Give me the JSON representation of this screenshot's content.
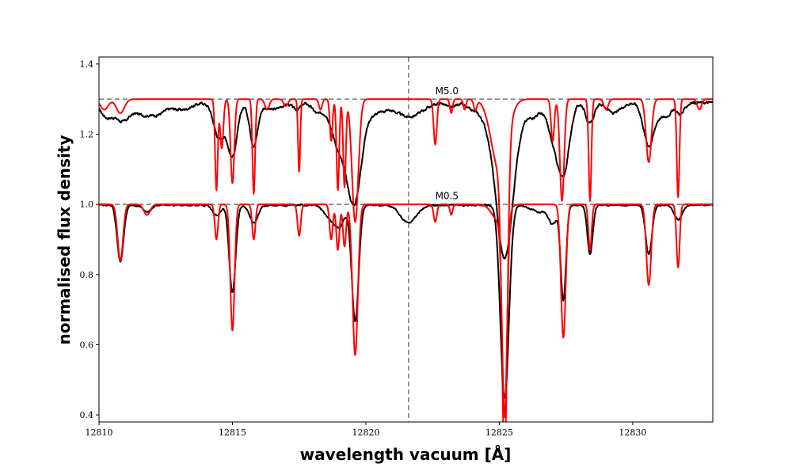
{
  "chart_data": {
    "type": "line",
    "xlabel": "wavelength vacuum [Å]",
    "ylabel": "normalised flux density",
    "xlim": [
      12810,
      12833
    ],
    "ylim": [
      0.38,
      1.42
    ],
    "xticks": [
      12810,
      12815,
      12820,
      12825,
      12830
    ],
    "yticks": [
      0.4,
      0.6,
      0.8,
      1.0,
      1.2,
      1.4
    ],
    "grid": false,
    "reference_lines": [
      {
        "orientation": "horizontal",
        "y": 1.3,
        "style": "dashed",
        "color": "#808080"
      },
      {
        "orientation": "horizontal",
        "y": 1.0,
        "style": "dashed",
        "color": "#808080"
      },
      {
        "orientation": "vertical",
        "x": 12821.6,
        "style": "dashed",
        "color": "#808080"
      }
    ],
    "annotations": [
      {
        "text": "M5.0",
        "x": 12822.6,
        "y": 1.31
      },
      {
        "text": "M0.5",
        "x": 12822.6,
        "y": 1.01
      }
    ],
    "series": [
      {
        "color": "#000000",
        "offset": 1.3,
        "continuum": 1.29,
        "noise": 0.009,
        "lines": [
          [
            12810.3,
            0.04,
            0.25
          ],
          [
            12810.9,
            0.05,
            0.25
          ],
          [
            12811.6,
            0.03,
            0.3
          ],
          [
            12812.2,
            0.03,
            0.3
          ],
          [
            12813.1,
            0.02,
            0.35
          ],
          [
            12814.5,
            0.1,
            0.2
          ],
          [
            12815.0,
            0.15,
            0.18
          ],
          [
            12815.8,
            0.12,
            0.15
          ],
          [
            12816.5,
            0.02,
            0.3
          ],
          [
            12817.4,
            0.02,
            0.15
          ],
          [
            12818.2,
            0.03,
            0.2
          ],
          [
            12818.9,
            0.08,
            0.25
          ],
          [
            12819.3,
            0.1,
            0.3
          ],
          [
            12819.6,
            0.22,
            0.25
          ],
          [
            12820.3,
            0.03,
            0.35
          ],
          [
            12821.6,
            0.04,
            0.5
          ],
          [
            12823.2,
            0.015,
            0.15
          ],
          [
            12823.9,
            0.015,
            0.2
          ],
          [
            12824.5,
            0.04,
            0.3
          ],
          [
            12825.2,
            0.44,
            0.32
          ],
          [
            12826.2,
            0.04,
            0.35
          ],
          [
            12827.0,
            0.08,
            0.2
          ],
          [
            12827.4,
            0.2,
            0.22
          ],
          [
            12828.4,
            0.06,
            0.15
          ],
          [
            12829.3,
            0.03,
            0.25
          ],
          [
            12830.6,
            0.12,
            0.2
          ],
          [
            12831.2,
            0.04,
            0.25
          ],
          [
            12831.8,
            0.03,
            0.15
          ]
        ]
      },
      {
        "color": "#ff0000",
        "offset": 1.3,
        "continuum": 1.3,
        "noise": 0.0,
        "lines": [
          [
            12810.2,
            0.03,
            0.15
          ],
          [
            12810.8,
            0.04,
            0.15
          ],
          [
            12814.4,
            0.26,
            0.05
          ],
          [
            12814.6,
            0.14,
            0.06
          ],
          [
            12815.0,
            0.24,
            0.07
          ],
          [
            12815.8,
            0.27,
            0.05
          ],
          [
            12816.3,
            0.03,
            0.08
          ],
          [
            12817.0,
            0.02,
            0.08
          ],
          [
            12817.5,
            0.21,
            0.04
          ],
          [
            12818.3,
            0.03,
            0.06
          ],
          [
            12818.7,
            0.12,
            0.05
          ],
          [
            12818.95,
            0.26,
            0.05
          ],
          [
            12819.2,
            0.25,
            0.05
          ],
          [
            12819.6,
            0.35,
            0.12
          ],
          [
            12822.6,
            0.13,
            0.06
          ],
          [
            12823.2,
            0.04,
            0.05
          ],
          [
            12823.7,
            0.03,
            0.05
          ],
          [
            12824.1,
            0.03,
            0.06
          ],
          [
            12825.2,
            0.87,
            0.1
          ],
          [
            12825.0,
            0.2,
            0.3
          ],
          [
            12827.0,
            0.12,
            0.06
          ],
          [
            12827.35,
            0.29,
            0.08
          ],
          [
            12828.4,
            0.29,
            0.05
          ],
          [
            12829.0,
            0.03,
            0.08
          ],
          [
            12830.6,
            0.18,
            0.1
          ],
          [
            12831.7,
            0.28,
            0.05
          ],
          [
            12832.5,
            0.03,
            0.08
          ]
        ]
      },
      {
        "color": "#000000",
        "offset": 1.0,
        "continuum": 0.998,
        "noise": 0.005,
        "lines": [
          [
            12810.8,
            0.16,
            0.12
          ],
          [
            12811.8,
            0.02,
            0.15
          ],
          [
            12814.4,
            0.03,
            0.15
          ],
          [
            12815.0,
            0.25,
            0.12
          ],
          [
            12815.8,
            0.05,
            0.15
          ],
          [
            12818.6,
            0.03,
            0.2
          ],
          [
            12819.0,
            0.06,
            0.2
          ],
          [
            12819.6,
            0.33,
            0.13
          ],
          [
            12821.6,
            0.05,
            0.3
          ],
          [
            12825.2,
            0.55,
            0.16
          ],
          [
            12826.5,
            0.02,
            0.3
          ],
          [
            12827.0,
            0.05,
            0.15
          ],
          [
            12827.4,
            0.27,
            0.1
          ],
          [
            12828.4,
            0.14,
            0.1
          ],
          [
            12830.6,
            0.14,
            0.12
          ],
          [
            12831.7,
            0.04,
            0.15
          ]
        ]
      },
      {
        "color": "#ff0000",
        "offset": 1.0,
        "continuum": 1.0,
        "noise": 0.0,
        "lines": [
          [
            12810.8,
            0.16,
            0.1
          ],
          [
            12811.8,
            0.03,
            0.12
          ],
          [
            12814.4,
            0.1,
            0.06
          ],
          [
            12815.0,
            0.36,
            0.08
          ],
          [
            12815.8,
            0.1,
            0.06
          ],
          [
            12817.5,
            0.09,
            0.06
          ],
          [
            12818.7,
            0.1,
            0.06
          ],
          [
            12818.95,
            0.13,
            0.06
          ],
          [
            12819.2,
            0.12,
            0.06
          ],
          [
            12819.6,
            0.43,
            0.1
          ],
          [
            12822.6,
            0.05,
            0.06
          ],
          [
            12823.2,
            0.03,
            0.05
          ],
          [
            12825.2,
            0.57,
            0.09
          ],
          [
            12825.0,
            0.05,
            0.25
          ],
          [
            12827.4,
            0.38,
            0.09
          ],
          [
            12828.4,
            0.13,
            0.06
          ],
          [
            12830.6,
            0.23,
            0.09
          ],
          [
            12831.7,
            0.18,
            0.06
          ]
        ]
      }
    ]
  }
}
